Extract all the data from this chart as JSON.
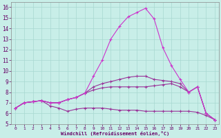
{
  "xlabel": "Windchill (Refroidissement éolien,°C)",
  "xlim": [
    -0.5,
    23.5
  ],
  "ylim": [
    5,
    16.5
  ],
  "xticks": [
    0,
    1,
    2,
    3,
    4,
    5,
    6,
    7,
    8,
    9,
    10,
    11,
    12,
    13,
    14,
    15,
    16,
    17,
    18,
    19,
    20,
    21,
    22,
    23
  ],
  "yticks": [
    5,
    6,
    7,
    8,
    9,
    10,
    11,
    12,
    13,
    14,
    15,
    16
  ],
  "background_color": "#c8eee8",
  "grid_color": "#a8d8d0",
  "x": [
    0,
    1,
    2,
    3,
    4,
    5,
    6,
    7,
    8,
    9,
    10,
    11,
    12,
    13,
    14,
    15,
    16,
    17,
    18,
    19,
    20,
    21,
    22,
    23
  ],
  "series1": [
    6.5,
    7.0,
    7.1,
    7.2,
    6.7,
    6.5,
    6.2,
    6.4,
    6.5,
    6.5,
    6.5,
    6.4,
    6.3,
    6.3,
    6.3,
    6.2,
    6.2,
    6.2,
    6.2,
    6.2,
    6.2,
    6.1,
    5.8,
    5.4
  ],
  "series2": [
    6.5,
    7.0,
    7.1,
    7.2,
    7.0,
    7.0,
    7.3,
    7.5,
    7.9,
    8.2,
    8.4,
    8.5,
    8.5,
    8.5,
    8.5,
    8.5,
    8.6,
    8.7,
    8.8,
    8.5,
    8.0,
    8.5,
    6.0,
    5.4
  ],
  "series3": [
    6.5,
    7.0,
    7.1,
    7.2,
    7.0,
    7.0,
    7.3,
    7.5,
    7.9,
    8.5,
    8.8,
    9.0,
    9.2,
    9.4,
    9.5,
    9.5,
    9.2,
    9.1,
    9.0,
    8.8,
    8.0,
    8.5,
    6.0,
    5.4
  ],
  "series4": [
    6.5,
    7.0,
    7.1,
    7.2,
    7.0,
    7.0,
    7.3,
    7.5,
    7.9,
    9.5,
    11.0,
    13.0,
    14.2,
    15.1,
    15.5,
    15.9,
    14.9,
    12.2,
    10.5,
    9.2,
    8.0,
    8.5,
    6.0,
    5.4
  ],
  "line_color1": "#993399",
  "line_color2": "#993399",
  "line_color3": "#993399",
  "line_color4": "#cc33cc"
}
